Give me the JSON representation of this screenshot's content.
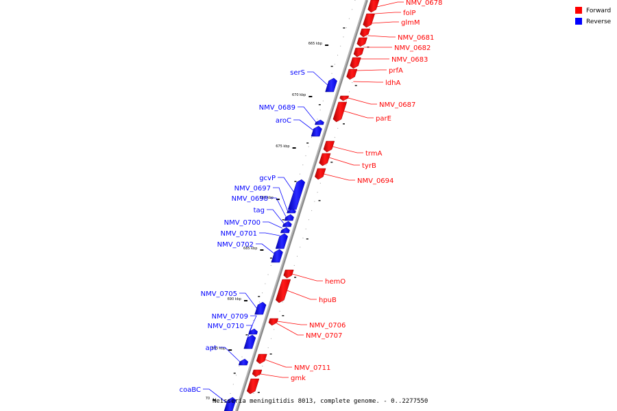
{
  "caption": "Neisseria meningitidis 8013, complete genome. - 0..2277550",
  "legend": [
    {
      "label": "Forward",
      "color": "#ff0000"
    },
    {
      "label": "Reverse",
      "color": "#0000ff"
    }
  ],
  "kbp_markers": [
    "665 kbp",
    "670 kbp",
    "675 kbp",
    "680 kbp",
    "685 kbp",
    "690 kbp",
    "695 kbp",
    "70"
  ],
  "genes_forward": [
    "NMV_0678",
    "folP",
    "glmM",
    "NMV_0681",
    "NMV_0682",
    "NMV_0683",
    "prfA",
    "ldhA",
    "NMV_0687",
    "parE",
    "trmA",
    "tyrB",
    "NMV_0694",
    "hemO",
    "hpuB",
    "NMV_0706",
    "NMV_0707",
    "NMV_0711",
    "gmk"
  ],
  "genes_reverse": [
    "serS",
    "NMV_0689",
    "aroC",
    "gcvP",
    "NMV_0697",
    "NMV_0698",
    "tag",
    "NMV_0700",
    "NMV_0701",
    "NMV_0702",
    "NMV_0705",
    "NMV_0709",
    "NMV_0710",
    "apt",
    "coaBC"
  ]
}
